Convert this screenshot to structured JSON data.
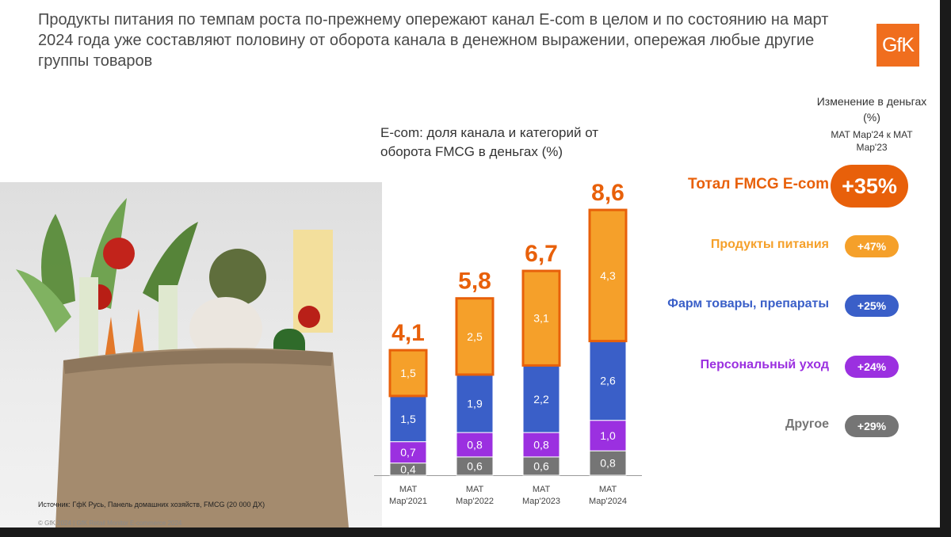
{
  "headline": "Продукты питания по темпам роста по-прежнему опережают канал E-com в целом и по состоянию на март 2024 года уже составляют половину от оборота канала в денежном выражении, опережая любые другие группы товаров",
  "logo_text": "GfK",
  "legend_header": {
    "title": "Изменение в деньгах (%)",
    "subtitle": "МАТ Мар'24 к МАТ Мар'23"
  },
  "source": "Источник: ГфК Русь, Панель домашних хозяйств, FMCG (20 000 ДХ)",
  "copyright": "© GfK 2024 | GfK Retail Monitor E-commerce 2024",
  "legend": [
    {
      "label": "Тотал FMCG E-com",
      "change": "+35%",
      "color": "#e8600a"
    },
    {
      "label": "Продукты питания",
      "change": "+47%",
      "color": "#f5a02a"
    },
    {
      "label": "Фарм товары, препараты",
      "change": "+25%",
      "color": "#3a5fc8"
    },
    {
      "label": "Персональный уход",
      "change": "+24%",
      "color": "#9b30e0"
    },
    {
      "label": "Другое",
      "change": "+29%",
      "color": "#757575"
    }
  ],
  "chart_data": {
    "type": "bar",
    "stacked": true,
    "title": "E-com: доля канала и категорий от оборота FMCG в деньгах (%)",
    "categories": [
      [
        "МАТ",
        "Мар'2021"
      ],
      [
        "МАТ",
        "Мар'2022"
      ],
      [
        "МАТ",
        "Мар'2023"
      ],
      [
        "МАТ",
        "Мар'2024"
      ]
    ],
    "totals": [
      "4,1",
      "5,8",
      "6,7",
      "8,6"
    ],
    "series": [
      {
        "name": "Другое",
        "color": "#757575",
        "values": [
          0.4,
          0.6,
          0.6,
          0.8
        ],
        "labels": [
          "0,4",
          "0,6",
          "0,6",
          "0,8"
        ]
      },
      {
        "name": "Персональный уход",
        "color": "#9b30e0",
        "values": [
          0.7,
          0.8,
          0.8,
          1.0
        ],
        "labels": [
          "0,7",
          "0,8",
          "0,8",
          "1,0"
        ]
      },
      {
        "name": "Фарм товары, препараты",
        "color": "#3a5fc8",
        "values": [
          1.5,
          1.9,
          2.2,
          2.6
        ],
        "labels": [
          "1,5",
          "1,9",
          "2,2",
          "2,6"
        ]
      },
      {
        "name": "Продукты питания",
        "color": "#f5a02a",
        "values": [
          1.5,
          2.5,
          3.1,
          4.3
        ],
        "labels": [
          "1,5",
          "2,5",
          "3,1",
          "4,3"
        ]
      }
    ],
    "total_color": "#e8600a",
    "ylim": [
      0,
      8.6
    ]
  }
}
